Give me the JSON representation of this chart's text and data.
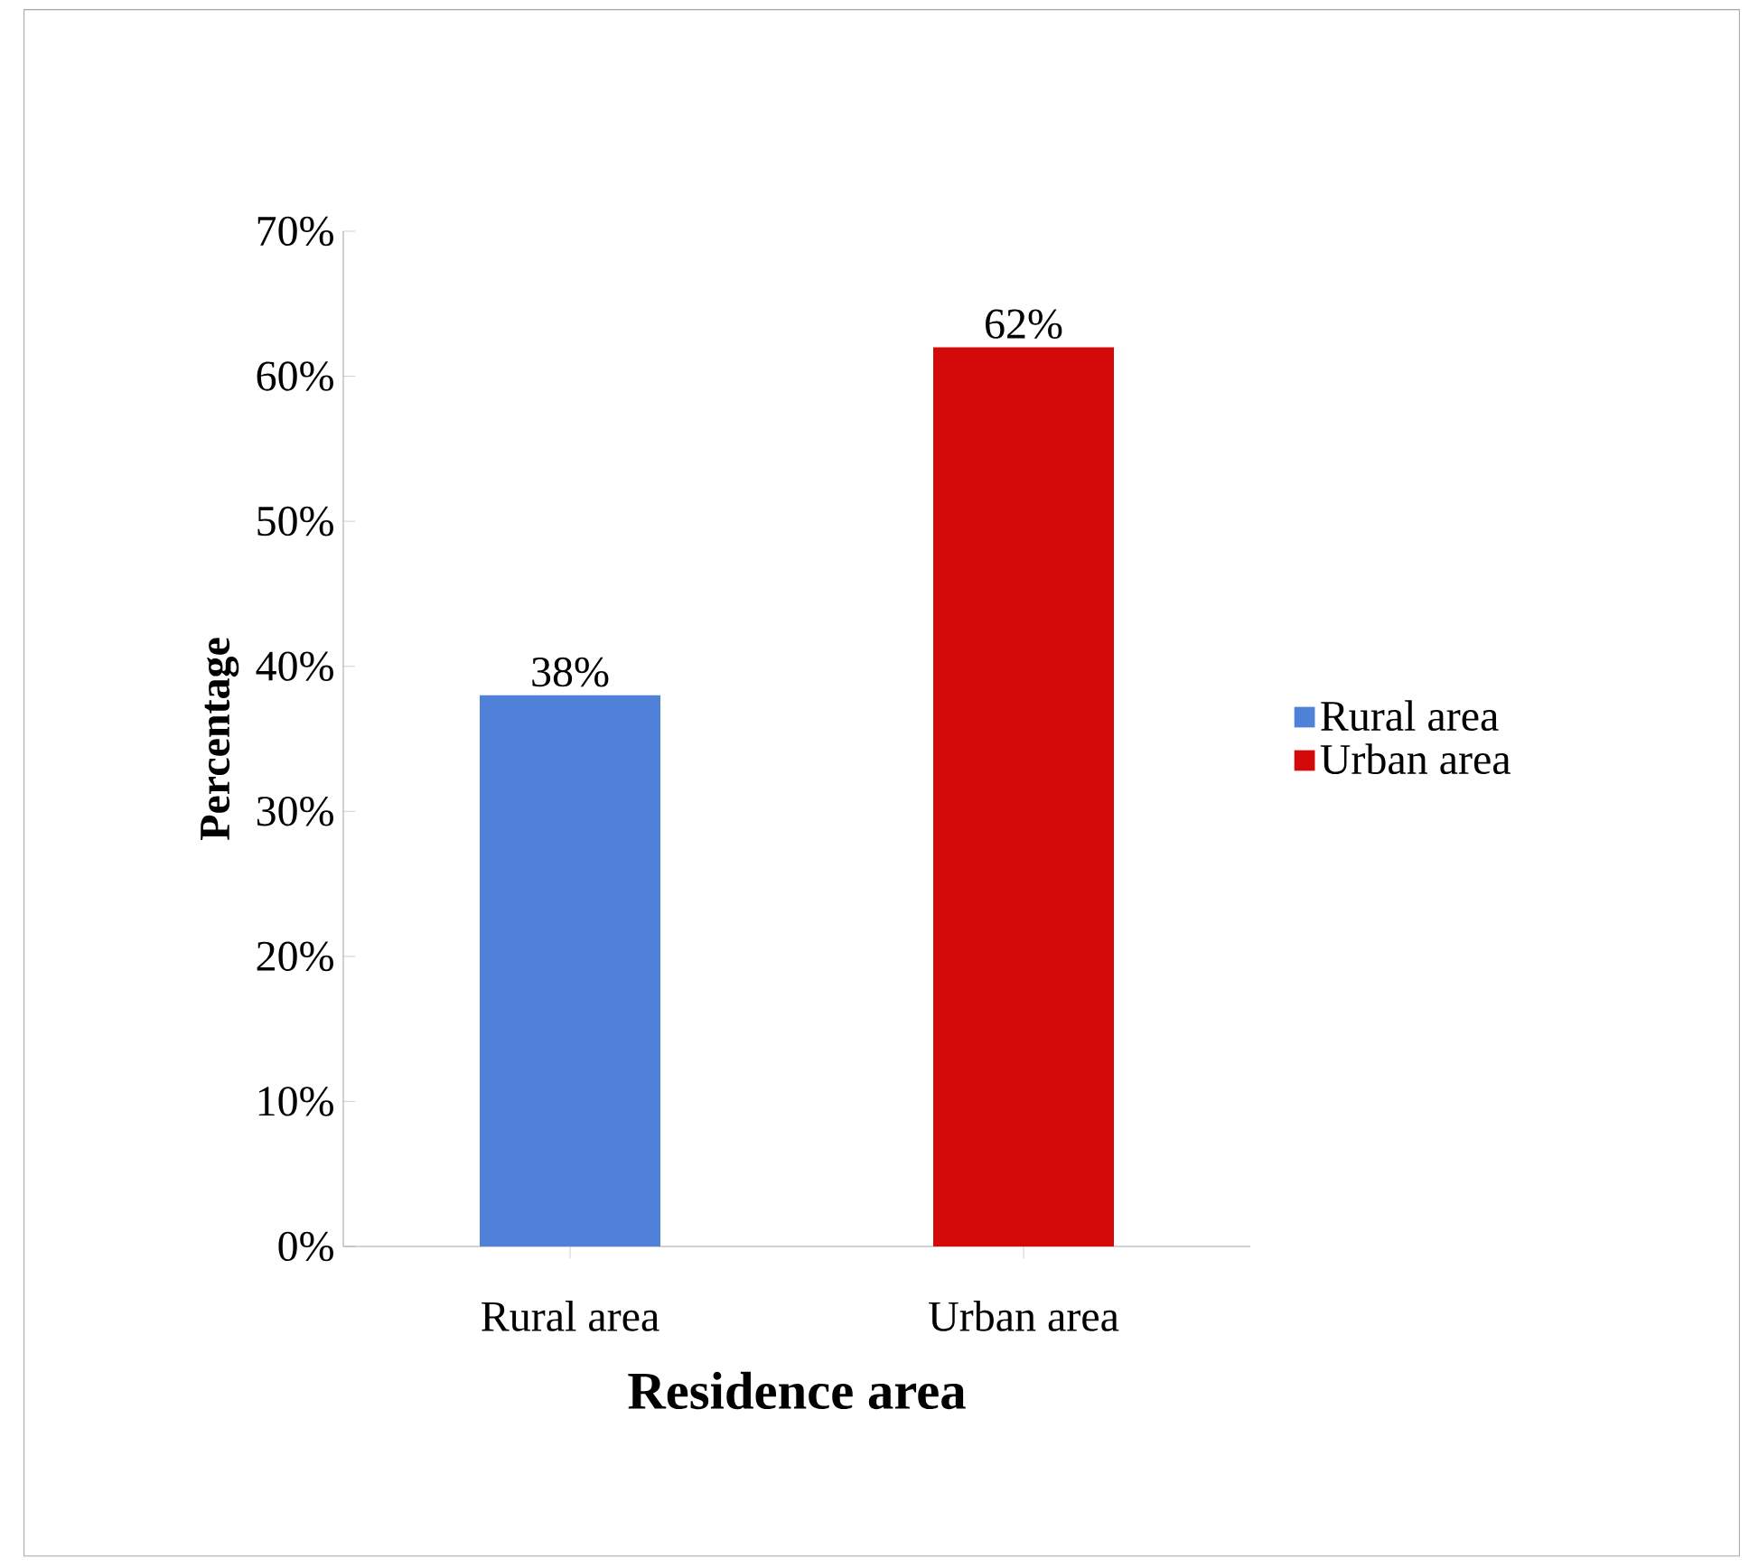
{
  "chart_data": {
    "type": "bar",
    "xlabel": "Residence area",
    "ylabel": "Percentage",
    "categories": [
      "Rural area",
      "Urban area"
    ],
    "series": [
      {
        "name": "Rural area",
        "color": "#4f81d9",
        "values": [
          38,
          null
        ],
        "value_labels": [
          "38%",
          null
        ]
      },
      {
        "name": "Urban area",
        "color": "#d40a0a",
        "values": [
          null,
          62
        ],
        "value_labels": [
          null,
          "62%"
        ]
      }
    ],
    "ylim": [
      0,
      70
    ],
    "yticks": [
      {
        "value": 0,
        "label": "0%"
      },
      {
        "value": 10,
        "label": "10%"
      },
      {
        "value": 20,
        "label": "20%"
      },
      {
        "value": 30,
        "label": "30%"
      },
      {
        "value": 40,
        "label": "40%"
      },
      {
        "value": 50,
        "label": "50%"
      },
      {
        "value": 60,
        "label": "60%"
      },
      {
        "value": 70,
        "label": "70%"
      }
    ],
    "legend": "right",
    "grid": false
  }
}
